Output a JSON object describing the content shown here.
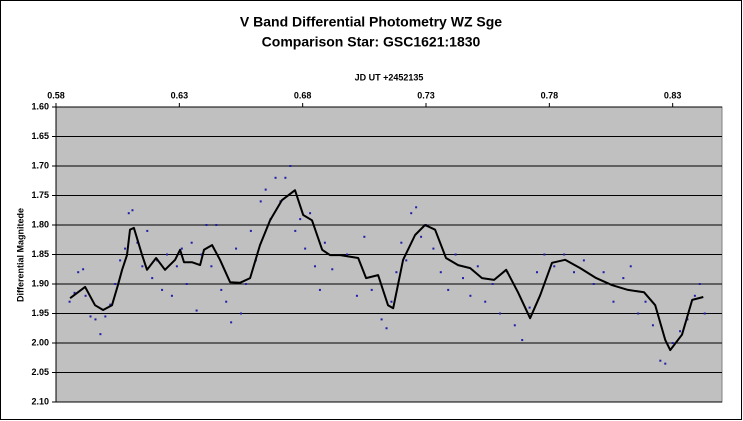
{
  "chart_data": {
    "type": "scatter",
    "title": "V Band Differential Photometry WZ Sge",
    "subtitle": "Comparison Star: GSC1621:1830",
    "x_label": "JD UT +2452135",
    "y_label": "Differential Magnitede",
    "xlim": [
      0.58,
      0.85
    ],
    "xticks": [
      0.58,
      0.63,
      0.68,
      0.73,
      0.78,
      0.83
    ],
    "ylim": [
      1.6,
      2.1
    ],
    "y_reversed": true,
    "yticks": [
      {
        "value": 1.6,
        "label": "1.60"
      },
      1.65,
      {
        "value": 1.7,
        "label": "1.70"
      },
      1.75,
      {
        "value": 1.8,
        "label": "1.80"
      },
      1.85,
      {
        "value": 1.9,
        "label": "1.90"
      },
      1.95,
      {
        "value": 2.0,
        "label": "2.00"
      },
      2.05,
      {
        "value": 2.1,
        "label": "2.10"
      }
    ],
    "grid": true,
    "plot_background": "#c0c0c0",
    "series": [
      {
        "style": "markers",
        "color": "#1f1fa8",
        "x": [
          0.5855,
          0.5875,
          0.589,
          0.591,
          0.592,
          0.594,
          0.596,
          0.598,
          0.6,
          0.602,
          0.604,
          0.606,
          0.608,
          0.6095,
          0.611,
          0.613,
          0.615,
          0.617,
          0.619,
          0.621,
          0.623,
          0.625,
          0.627,
          0.629,
          0.631,
          0.633,
          0.635,
          0.637,
          0.639,
          0.641,
          0.643,
          0.645,
          0.647,
          0.649,
          0.651,
          0.653,
          0.655,
          0.657,
          0.659,
          0.661,
          0.663,
          0.665,
          0.667,
          0.669,
          0.671,
          0.673,
          0.675,
          0.677,
          0.679,
          0.681,
          0.683,
          0.685,
          0.687,
          0.689,
          0.692,
          0.698,
          0.702,
          0.705,
          0.708,
          0.712,
          0.714,
          0.716,
          0.718,
          0.72,
          0.722,
          0.724,
          0.726,
          0.728,
          0.73,
          0.733,
          0.736,
          0.739,
          0.742,
          0.745,
          0.748,
          0.751,
          0.754,
          0.757,
          0.76,
          0.763,
          0.766,
          0.769,
          0.772,
          0.775,
          0.778,
          0.782,
          0.786,
          0.79,
          0.794,
          0.798,
          0.802,
          0.806,
          0.81,
          0.813,
          0.816,
          0.819,
          0.822,
          0.825,
          0.827,
          0.83,
          0.833,
          0.836,
          0.839,
          0.841,
          0.843
        ],
        "values": [
          1.93,
          1.915,
          1.88,
          1.875,
          1.92,
          1.955,
          1.96,
          1.985,
          1.955,
          1.935,
          1.9,
          1.86,
          1.84,
          1.78,
          1.775,
          1.83,
          1.87,
          1.81,
          1.89,
          1.86,
          1.91,
          1.85,
          1.92,
          1.87,
          1.84,
          1.9,
          1.83,
          1.945,
          1.85,
          1.8,
          1.87,
          1.8,
          1.91,
          1.93,
          1.965,
          1.84,
          1.95,
          1.9,
          1.81,
          1.86,
          1.76,
          1.74,
          1.79,
          1.72,
          1.76,
          1.72,
          1.7,
          1.81,
          1.79,
          1.84,
          1.78,
          1.87,
          1.91,
          1.83,
          1.875,
          1.85,
          1.92,
          1.82,
          1.91,
          1.96,
          1.975,
          1.93,
          1.88,
          1.83,
          1.86,
          1.78,
          1.77,
          1.82,
          1.8,
          1.84,
          1.88,
          1.91,
          1.85,
          1.89,
          1.92,
          1.87,
          1.93,
          1.9,
          1.95,
          1.88,
          1.97,
          1.995,
          1.94,
          1.88,
          1.85,
          1.87,
          1.85,
          1.88,
          1.86,
          1.9,
          1.88,
          1.93,
          1.89,
          1.87,
          1.95,
          1.93,
          1.97,
          2.03,
          2.035,
          2.0,
          1.98,
          1.96,
          1.92,
          1.9,
          1.95
        ]
      },
      {
        "style": "line",
        "color": "#000000",
        "x": [
          0.5857,
          0.5918,
          0.5958,
          0.5991,
          0.6027,
          0.6051,
          0.6068,
          0.6088,
          0.61,
          0.6116,
          0.6149,
          0.6169,
          0.6206,
          0.6242,
          0.6283,
          0.6303,
          0.6319,
          0.6351,
          0.6384,
          0.64,
          0.6433,
          0.6465,
          0.6506,
          0.6546,
          0.6587,
          0.6627,
          0.6668,
          0.6716,
          0.6769,
          0.6802,
          0.6838,
          0.6879,
          0.6911,
          0.6952,
          0.7025,
          0.7057,
          0.7106,
          0.7146,
          0.7167,
          0.7207,
          0.7256,
          0.7296,
          0.7337,
          0.7381,
          0.743,
          0.7479,
          0.7527,
          0.7576,
          0.7625,
          0.7673,
          0.7722,
          0.7763,
          0.7811,
          0.7864,
          0.7925,
          0.799,
          0.8055,
          0.8119,
          0.8184,
          0.8229,
          0.827,
          0.829,
          0.8338,
          0.8379,
          0.8424
        ],
        "values": [
          1.924,
          1.905,
          1.936,
          1.944,
          1.936,
          1.902,
          1.876,
          1.851,
          1.808,
          1.805,
          1.851,
          1.876,
          1.856,
          1.876,
          1.859,
          1.842,
          1.863,
          1.863,
          1.868,
          1.842,
          1.834,
          1.859,
          1.897,
          1.898,
          1.89,
          1.834,
          1.792,
          1.758,
          1.741,
          1.783,
          1.792,
          1.842,
          1.851,
          1.851,
          1.856,
          1.89,
          1.885,
          1.936,
          1.941,
          1.859,
          1.817,
          1.8,
          1.808,
          1.856,
          1.868,
          1.873,
          1.89,
          1.893,
          1.876,
          1.914,
          1.958,
          1.919,
          1.864,
          1.859,
          1.873,
          1.89,
          1.902,
          1.91,
          1.914,
          1.936,
          1.995,
          2.012,
          1.986,
          1.927,
          1.922
        ]
      }
    ]
  }
}
